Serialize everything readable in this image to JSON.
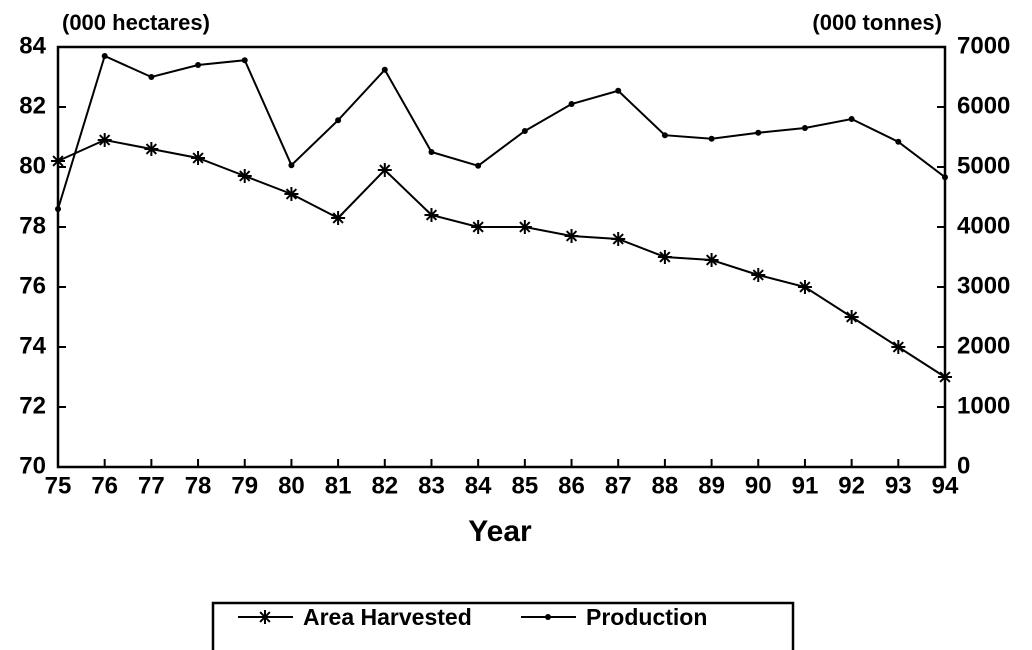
{
  "chart_data": {
    "type": "line",
    "y_label": "(000 hectares)",
    "y2_label": "(000 tonnes)",
    "x_label": "Year",
    "categories": [
      "75",
      "76",
      "77",
      "78",
      "79",
      "80",
      "81",
      "82",
      "83",
      "84",
      "85",
      "86",
      "87",
      "88",
      "89",
      "90",
      "91",
      "92",
      "93",
      "94"
    ],
    "series": [
      {
        "name": "Area Harvested",
        "color": "#000000",
        "marker": "asterisk",
        "values": [
          80.2,
          80.9,
          80.6,
          80.3,
          79.7,
          79.1,
          78.3,
          79.9,
          78.4,
          78.0,
          78.0,
          77.7,
          77.6,
          77.0,
          76.9,
          76.4,
          76.0,
          75.0,
          74.0,
          73.0
        ]
      },
      {
        "name": "Production",
        "color": "#000000",
        "marker": "dot",
        "axis": "y2",
        "values": [
          4300,
          6850,
          6500,
          6700,
          6780,
          5030,
          5780,
          6620,
          5250,
          5020,
          5600,
          6050,
          6270,
          5530,
          5470,
          5570,
          5650,
          5800,
          5420,
          4830
        ]
      }
    ],
    "ylim": [
      70,
      84
    ],
    "yticks": [
      70,
      72,
      74,
      76,
      78,
      80,
      82,
      84
    ],
    "y2lim": [
      0,
      7000
    ],
    "y2ticks": [
      0,
      1000,
      2000,
      3000,
      4000,
      5000,
      6000,
      7000
    ],
    "legend": "bottom"
  }
}
